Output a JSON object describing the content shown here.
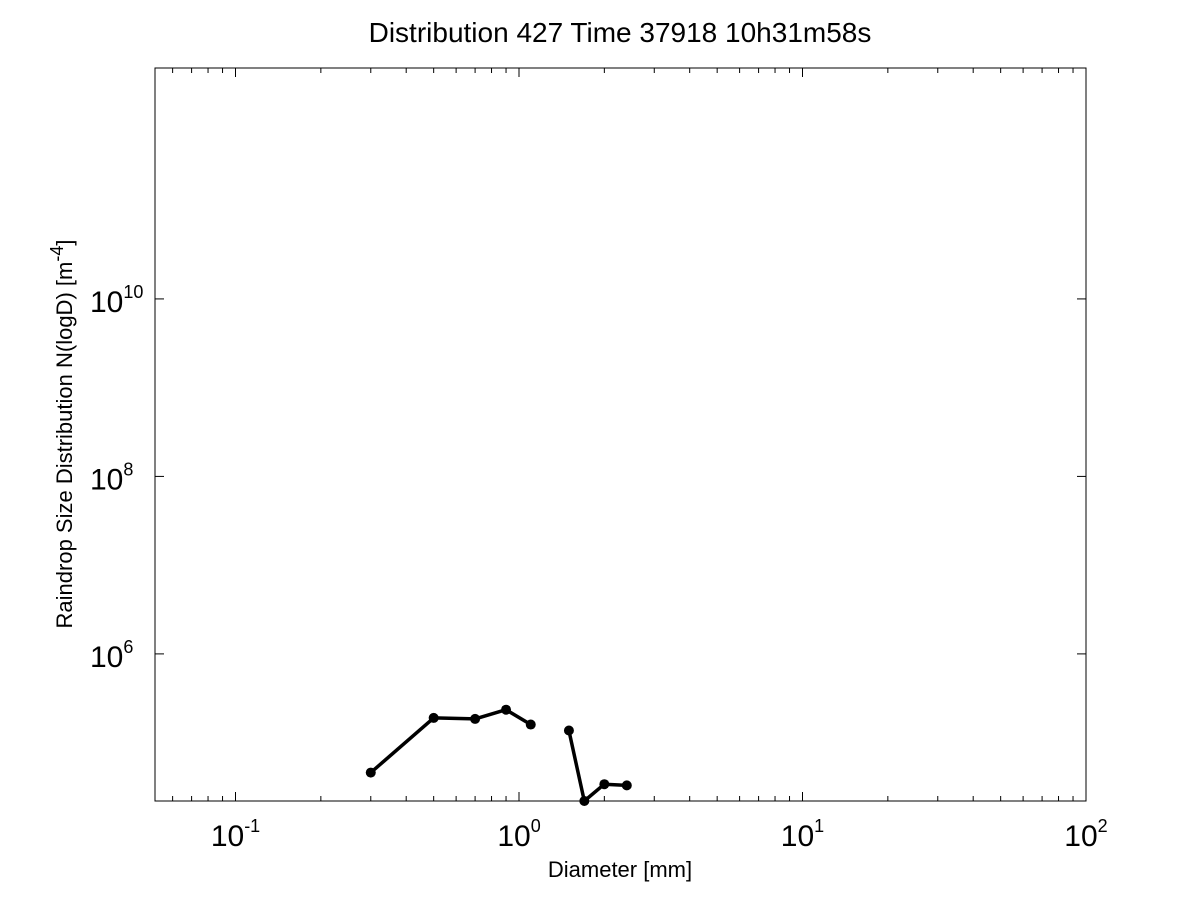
{
  "chart_data": {
    "type": "line",
    "title": "Distribution 427 Time 37918 10h31m58s",
    "xlabel": "Diameter [mm]",
    "ylabel": "Raindrop Size Distribution N(logD) [m",
    "ylabel_exponent": "-4",
    "ylabel_suffix": "]",
    "x_scale": "log",
    "y_scale": "log",
    "xlim": [
      0.052,
      100
    ],
    "ylim": [
      22000,
      4000000000000
    ],
    "grid": false,
    "x_ticks": [
      {
        "value": 0.1,
        "base": "10",
        "exp": "-1"
      },
      {
        "value": 1,
        "base": "10",
        "exp": "0"
      },
      {
        "value": 10,
        "base": "10",
        "exp": "1"
      },
      {
        "value": 100,
        "base": "10",
        "exp": "2"
      }
    ],
    "y_ticks": [
      {
        "value": 1000000,
        "base": "10",
        "exp": "6"
      },
      {
        "value": 100000000,
        "base": "10",
        "exp": "8"
      },
      {
        "value": 10000000000,
        "base": "10",
        "exp": "10"
      }
    ],
    "series": [
      {
        "color": "#000000",
        "marker": "circle",
        "segments": [
          {
            "x": [
              0.3,
              0.5,
              0.7,
              0.9,
              1.1
            ],
            "y": [
              46000,
              190000,
              185000,
              235000,
              160000
            ]
          },
          {
            "x": [
              1.5,
              1.7,
              2.0,
              2.4
            ],
            "y": [
              137000,
              22000,
              34000,
              33000
            ]
          }
        ]
      }
    ]
  }
}
